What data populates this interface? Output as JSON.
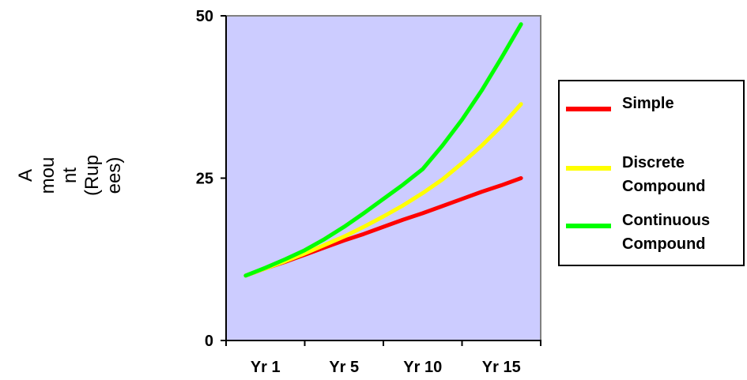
{
  "chart_data": {
    "type": "line",
    "title": "",
    "xlabel": "",
    "ylabel_lines": [
      "A",
      "mou",
      "nt",
      "(Rup",
      "ees)"
    ],
    "x_tick_labels": [
      "Yr 1",
      "Yr 5",
      "Yr 10",
      "Yr 15"
    ],
    "x": [
      1,
      2,
      3,
      4,
      5,
      6,
      7,
      8,
      9,
      10,
      11,
      12,
      13,
      14,
      15
    ],
    "ylim": [
      0,
      50
    ],
    "yticks": [
      0,
      25,
      50
    ],
    "xlim": [
      0,
      16
    ],
    "plot_background": "#CCCCFF",
    "grid": false,
    "legend_position": "right",
    "series": [
      {
        "name": "Simple",
        "color": "#FF0000",
        "values": [
          10.0,
          11.1,
          12.1,
          13.2,
          14.3,
          15.4,
          16.4,
          17.5,
          18.6,
          19.6,
          20.7,
          21.8,
          22.9,
          23.9,
          25.0
        ]
      },
      {
        "name": "Discrete\nCompound",
        "color": "#FFFF00",
        "values": [
          10.0,
          11.1,
          12.2,
          13.4,
          14.7,
          16.0,
          17.5,
          19.1,
          20.8,
          22.7,
          24.8,
          27.3,
          30.0,
          33.0,
          36.4
        ]
      },
      {
        "name": "Continuous\nCompound",
        "color": "#00FF00",
        "values": [
          10.0,
          11.2,
          12.5,
          13.9,
          15.6,
          17.5,
          19.6,
          21.8,
          24.0,
          26.4,
          30.0,
          34.0,
          38.5,
          43.5,
          48.7
        ]
      }
    ]
  }
}
